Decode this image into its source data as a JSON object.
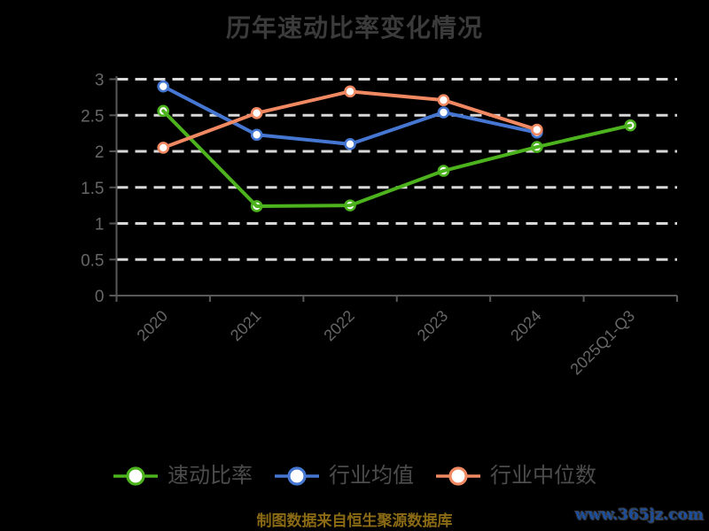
{
  "title": "历年速动比率变化情况",
  "footer": {
    "source": "制图数据来自恒生聚源数据库",
    "watermark": "www.365jz.com"
  },
  "colors": {
    "background": "#000000",
    "title_text": "#3b3b3b",
    "axis": "#595959",
    "tick_label": "#666666",
    "grid": "#d8d8d8",
    "legend_text": "#4c4c4c",
    "source_text": "#8a6a14",
    "watermark_text": "#1d4e9b",
    "marker_fill": "#ffffff"
  },
  "chart_data": {
    "type": "line",
    "title": "历年速动比率变化情况",
    "categories": [
      "2020",
      "2021",
      "2022",
      "2023",
      "2024",
      "2025Q1-Q3"
    ],
    "series": [
      {
        "id": "quick-ratio",
        "name": "速动比率",
        "color": "#4cb31e",
        "values": [
          2.56,
          1.24,
          1.25,
          1.73,
          2.06,
          2.36
        ],
        "line_over_marker": true
      },
      {
        "id": "industry-average",
        "name": "行业均值",
        "color": "#4577d2",
        "values": [
          2.9,
          2.23,
          2.1,
          2.54,
          2.26,
          null
        ],
        "line_over_marker": false
      },
      {
        "id": "industry-median",
        "name": "行业中位数",
        "color": "#f08862",
        "values": [
          2.05,
          2.53,
          2.83,
          2.71,
          2.3,
          null
        ],
        "line_over_marker": false
      }
    ],
    "ylim": [
      0,
      3
    ],
    "yticks": [
      0,
      0.5,
      1,
      1.5,
      2,
      2.5,
      3
    ],
    "xlabel": "",
    "ylabel": "",
    "grid": "dashed-horizontal-white",
    "x_label_rotation": 45,
    "legend_position": "bottom",
    "marker_style": "circle-white-fill-colored-ring"
  }
}
